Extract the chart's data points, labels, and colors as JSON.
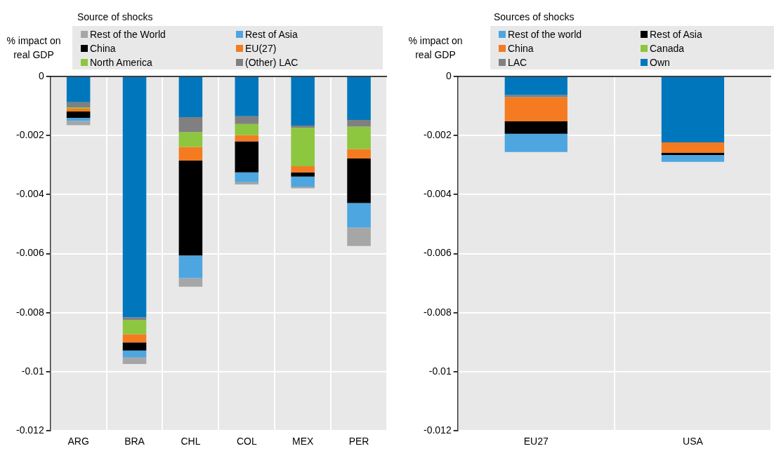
{
  "chart_data": [
    {
      "type": "bar",
      "stacked": true,
      "legend_title": "Source of shocks",
      "ylabel": "% impact on real GDP",
      "legend": "top",
      "grid": true,
      "categories": [
        "ARG",
        "BRA",
        "CHL",
        "COL",
        "MEX",
        "PER"
      ],
      "ylim": [
        -0.012,
        0
      ],
      "yticks": [
        -0.012,
        -0.01,
        -0.008,
        -0.006,
        -0.004,
        -0.002,
        0
      ],
      "series": [
        {
          "color": "#0077bd",
          "values": [
            -0.00087,
            -0.00816,
            -0.00138,
            -0.00135,
            -0.00166,
            -0.00147
          ]
        },
        {
          "name": "(Other) LAC",
          "color": "#808080",
          "values": [
            -0.00018,
            -9e-05,
            -0.0005,
            -0.00026,
            -8e-05,
            -0.00023
          ]
        },
        {
          "name": "North America",
          "color": "#8dc63f",
          "values": [
            -4e-05,
            -0.00048,
            -0.00051,
            -0.00038,
            -0.0013,
            -0.00076
          ]
        },
        {
          "name": "EU(27)",
          "color": "#f47b20",
          "values": [
            -0.0001,
            -0.00028,
            -0.00046,
            -0.00021,
            -0.00021,
            -0.00032
          ]
        },
        {
          "name": "China",
          "color": "#000000",
          "values": [
            -0.00021,
            -0.00027,
            -0.00321,
            -0.00105,
            -0.00014,
            -0.00151
          ]
        },
        {
          "name": "Rest of Asia",
          "color": "#4da6e0",
          "values": [
            -0.00011,
            -0.00024,
            -0.00077,
            -0.00033,
            -0.00034,
            -0.00083
          ]
        },
        {
          "name": "Rest of the World",
          "color": "#a6a6a6",
          "values": [
            -0.00014,
            -0.00022,
            -0.00029,
            -8e-05,
            -6e-05,
            -0.00062
          ]
        }
      ]
    },
    {
      "type": "bar",
      "stacked": true,
      "legend_title": "Sources of shocks",
      "ylabel": "% impact on real GDP",
      "legend": "top",
      "grid": true,
      "categories": [
        "EU27",
        "USA"
      ],
      "ylim": [
        -0.012,
        0
      ],
      "yticks": [
        -0.012,
        -0.01,
        -0.008,
        -0.006,
        -0.004,
        -0.002,
        0
      ],
      "series": [
        {
          "name": "Own",
          "color": "#0077bd",
          "values": [
            -0.00063,
            -0.00223
          ]
        },
        {
          "name": "LAC",
          "color": "#808080",
          "values": [
            -7e-05,
            0
          ]
        },
        {
          "name": "Canada",
          "color": "#8dc63f",
          "values": [
            0,
            0
          ]
        },
        {
          "name": "China",
          "color": "#f47b20",
          "values": [
            -0.00082,
            -0.00036
          ]
        },
        {
          "name": "Rest of Asia",
          "color": "#000000",
          "values": [
            -0.00042,
            -7e-05
          ]
        },
        {
          "name": "Rest of the world",
          "color": "#4da6e0",
          "values": [
            -0.00062,
            -0.00023
          ]
        }
      ]
    }
  ]
}
